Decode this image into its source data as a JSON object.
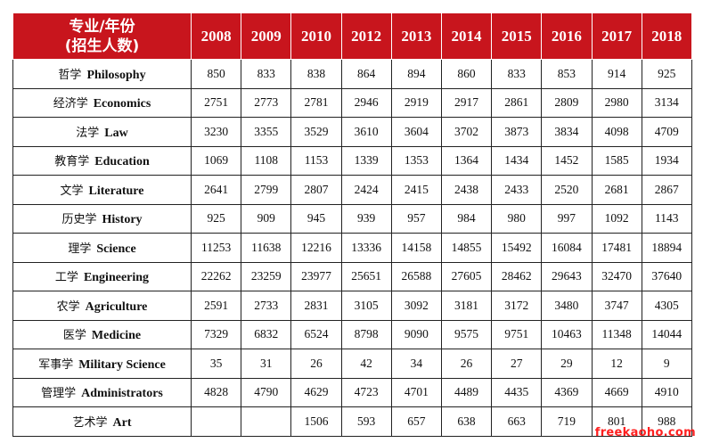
{
  "table": {
    "header": {
      "major_line1": "专业/年份",
      "major_line2": "(招生人数)",
      "years": [
        "2008",
        "2009",
        "2010",
        "2012",
        "2013",
        "2014",
        "2015",
        "2016",
        "2017",
        "2018"
      ]
    },
    "rows": [
      {
        "zh": "哲学",
        "en": "Philosophy",
        "values": [
          "850",
          "833",
          "838",
          "864",
          "894",
          "860",
          "833",
          "853",
          "914",
          "925"
        ]
      },
      {
        "zh": "经济学",
        "en": "Economics",
        "values": [
          "2751",
          "2773",
          "2781",
          "2946",
          "2919",
          "2917",
          "2861",
          "2809",
          "2980",
          "3134"
        ]
      },
      {
        "zh": "法学",
        "en": "Law",
        "values": [
          "3230",
          "3355",
          "3529",
          "3610",
          "3604",
          "3702",
          "3873",
          "3834",
          "4098",
          "4709"
        ]
      },
      {
        "zh": "教育学",
        "en": "Education",
        "values": [
          "1069",
          "1108",
          "1153",
          "1339",
          "1353",
          "1364",
          "1434",
          "1452",
          "1585",
          "1934"
        ]
      },
      {
        "zh": "文学",
        "en": "Literature",
        "values": [
          "2641",
          "2799",
          "2807",
          "2424",
          "2415",
          "2438",
          "2433",
          "2520",
          "2681",
          "2867"
        ]
      },
      {
        "zh": "历史学",
        "en": "History",
        "values": [
          "925",
          "909",
          "945",
          "939",
          "957",
          "984",
          "980",
          "997",
          "1092",
          "1143"
        ]
      },
      {
        "zh": "理学",
        "en": "Science",
        "values": [
          "11253",
          "11638",
          "12216",
          "13336",
          "14158",
          "14855",
          "15492",
          "16084",
          "17481",
          "18894"
        ]
      },
      {
        "zh": "工学",
        "en": "Engineering",
        "values": [
          "22262",
          "23259",
          "23977",
          "25651",
          "26588",
          "27605",
          "28462",
          "29643",
          "32470",
          "37640"
        ]
      },
      {
        "zh": "农学",
        "en": "Agriculture",
        "values": [
          "2591",
          "2733",
          "2831",
          "3105",
          "3092",
          "3181",
          "3172",
          "3480",
          "3747",
          "4305"
        ]
      },
      {
        "zh": "医学",
        "en": "Medicine",
        "values": [
          "7329",
          "6832",
          "6524",
          "8798",
          "9090",
          "9575",
          "9751",
          "10463",
          "11348",
          "14044"
        ]
      },
      {
        "zh": "军事学",
        "en": "Military Science",
        "values": [
          "35",
          "31",
          "26",
          "42",
          "34",
          "26",
          "27",
          "29",
          "12",
          "9"
        ]
      },
      {
        "zh": "管理学",
        "en": "Administrators",
        "values": [
          "4828",
          "4790",
          "4629",
          "4723",
          "4701",
          "4489",
          "4435",
          "4369",
          "4669",
          "4910"
        ]
      },
      {
        "zh": "艺术学",
        "en": "Art",
        "values": [
          "",
          "",
          "1506",
          "593",
          "657",
          "638",
          "663",
          "719",
          "801",
          "988"
        ]
      }
    ]
  },
  "watermark": "freekaoho.com",
  "colors": {
    "header_bg": "#c8151d",
    "header_text": "#ffffff",
    "watermark": "#ff2020"
  }
}
